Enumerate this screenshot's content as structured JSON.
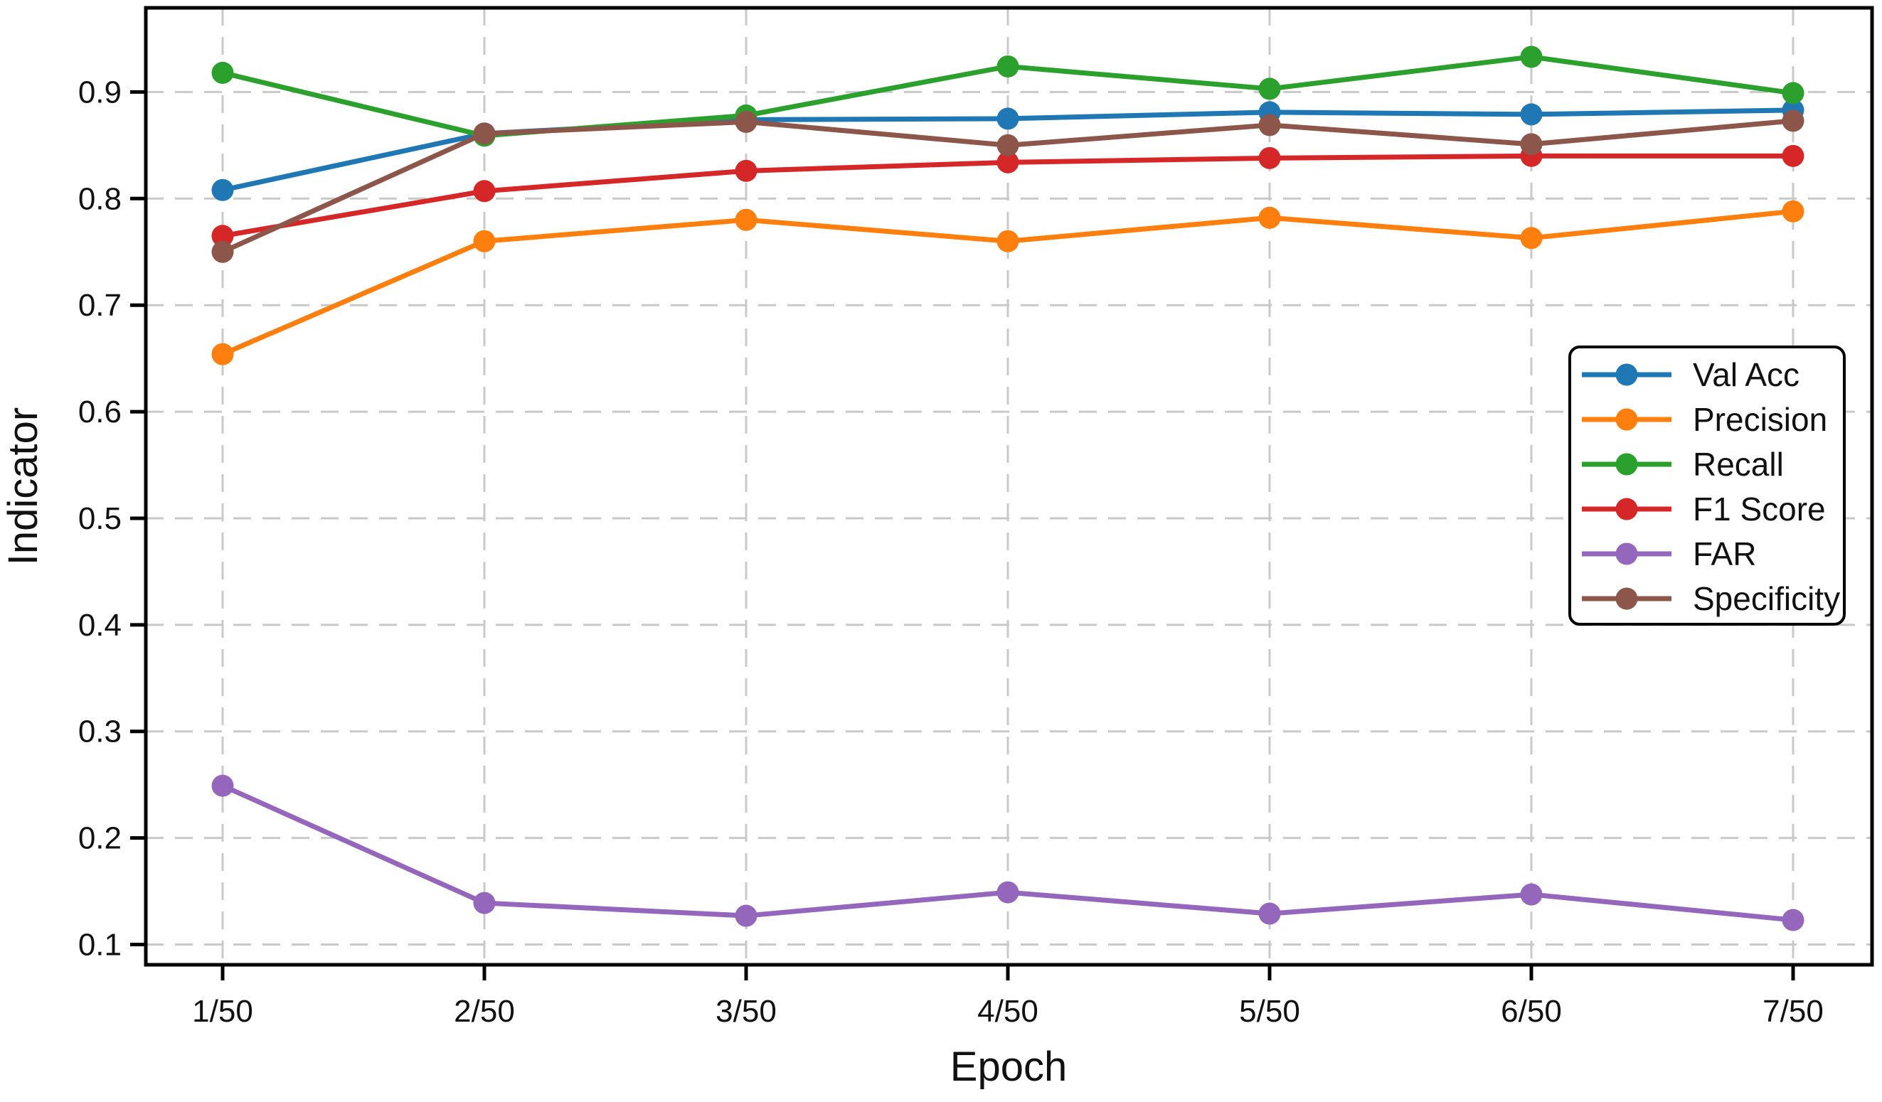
{
  "chart_data": {
    "type": "line",
    "title": "",
    "xlabel": "Epoch",
    "ylabel": "Indicator",
    "categories": [
      "1/50",
      "2/50",
      "3/50",
      "4/50",
      "5/50",
      "6/50",
      "7/50"
    ],
    "y_ticks": [
      0.1,
      0.2,
      0.3,
      0.4,
      0.5,
      0.6,
      0.7,
      0.8,
      0.9
    ],
    "ylim": [
      0.081,
      0.979
    ],
    "grid": true,
    "grid_style": "dashed",
    "legend_position": "center-right",
    "series": [
      {
        "name": "Val Acc",
        "color": "#1f77b4",
        "values": [
          0.808,
          0.861,
          0.874,
          0.875,
          0.881,
          0.879,
          0.883
        ]
      },
      {
        "name": "Precision",
        "color": "#ff7f0e",
        "values": [
          0.654,
          0.76,
          0.78,
          0.76,
          0.782,
          0.763,
          0.788
        ]
      },
      {
        "name": "Recall",
        "color": "#2ca02c",
        "values": [
          0.918,
          0.859,
          0.878,
          0.924,
          0.903,
          0.933,
          0.899
        ]
      },
      {
        "name": "F1 Score",
        "color": "#d62728",
        "values": [
          0.765,
          0.807,
          0.826,
          0.834,
          0.838,
          0.84,
          0.84
        ]
      },
      {
        "name": "FAR",
        "color": "#9467bd",
        "values": [
          0.249,
          0.139,
          0.127,
          0.149,
          0.129,
          0.147,
          0.123
        ]
      },
      {
        "name": "Specificity",
        "color": "#8c564b",
        "values": [
          0.75,
          0.861,
          0.872,
          0.85,
          0.869,
          0.851,
          0.873
        ]
      }
    ]
  }
}
